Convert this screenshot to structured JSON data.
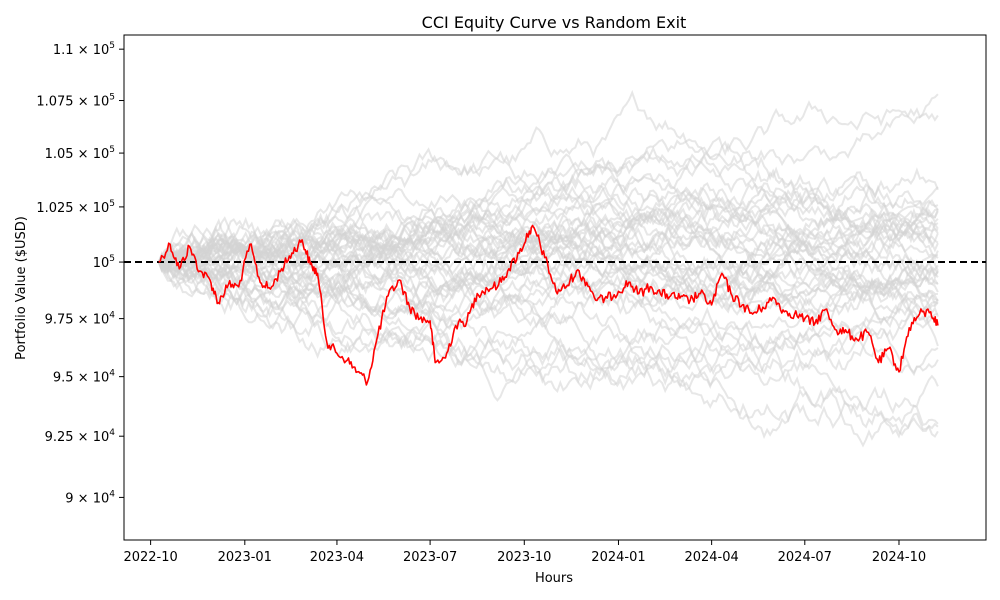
{
  "chart_data": {
    "type": "line",
    "title": "CCI Equity Curve vs Random Exit",
    "xlabel": "Hours",
    "ylabel": "Portfolio Value ($USD)",
    "yscale": "log",
    "xlim": [
      "2022-09-05",
      "2024-12-25"
    ],
    "ylim": [
      88300,
      110700
    ],
    "x_ticks": [
      "2022-10-01",
      "2023-01-01",
      "2023-04-01",
      "2023-07-01",
      "2023-10-01",
      "2024-01-01",
      "2024-04-01",
      "2024-07-01",
      "2024-10-01"
    ],
    "x_tick_labels": [
      "2022-10",
      "2023-01",
      "2023-04",
      "2023-07",
      "2023-10",
      "2024-01",
      "2024-04",
      "2024-07",
      "2024-10"
    ],
    "y_ticks": [
      {
        "value": 90000,
        "mantissa": "9",
        "exponent": "4"
      },
      {
        "value": 92500,
        "mantissa": "9.25",
        "exponent": "4"
      },
      {
        "value": 95000,
        "mantissa": "9.5",
        "exponent": "4"
      },
      {
        "value": 97500,
        "mantissa": "9.75",
        "exponent": "4"
      },
      {
        "value": 100000,
        "mantissa": "",
        "exponent": "5"
      },
      {
        "value": 102500,
        "mantissa": "1.025",
        "exponent": "5"
      },
      {
        "value": 105000,
        "mantissa": "1.05",
        "exponent": "5"
      },
      {
        "value": 107500,
        "mantissa": "1.075",
        "exponent": "5"
      },
      {
        "value": 110000,
        "mantissa": "1.1",
        "exponent": "5"
      }
    ],
    "baseline": {
      "y": 100000,
      "color": "#000000",
      "style": "dashed"
    },
    "grid": false,
    "colors": {
      "strategy": "#ff0000",
      "random": "#d3d3d3",
      "baseline": "#000000"
    },
    "series": [
      {
        "role": "strategy",
        "x": [
          "2022-10-09",
          "2022-10-20",
          "2022-10-29",
          "2022-11-08",
          "2022-11-18",
          "2022-11-28",
          "2022-12-06",
          "2022-12-16",
          "2022-12-26",
          "2023-01-06",
          "2023-01-16",
          "2023-01-26",
          "2023-02-06",
          "2023-02-16",
          "2023-02-26",
          "2023-03-06",
          "2023-03-13",
          "2023-03-22",
          "2023-04-01",
          "2023-04-11",
          "2023-04-21",
          "2023-05-01",
          "2023-05-11",
          "2023-05-21",
          "2023-06-01",
          "2023-06-11",
          "2023-06-21",
          "2023-07-01",
          "2023-07-06",
          "2023-07-16",
          "2023-07-26",
          "2023-08-06",
          "2023-08-16",
          "2023-08-26",
          "2023-09-06",
          "2023-09-16",
          "2023-09-26",
          "2023-10-06",
          "2023-10-11",
          "2023-10-21",
          "2023-11-01",
          "2023-11-11",
          "2023-11-21",
          "2023-12-01",
          "2023-12-11",
          "2023-12-21",
          "2024-01-01",
          "2024-01-11",
          "2024-01-21",
          "2024-02-01",
          "2024-02-11",
          "2024-02-21",
          "2024-03-01",
          "2024-03-11",
          "2024-03-21",
          "2024-04-01",
          "2024-04-11",
          "2024-04-21",
          "2024-05-01",
          "2024-05-11",
          "2024-05-21",
          "2024-06-01",
          "2024-06-11",
          "2024-06-21",
          "2024-07-01",
          "2024-07-11",
          "2024-07-21",
          "2024-08-01",
          "2024-08-11",
          "2024-08-21",
          "2024-09-01",
          "2024-09-11",
          "2024-09-21",
          "2024-10-01",
          "2024-10-11",
          "2024-10-21",
          "2024-11-01",
          "2024-11-08"
        ],
        "y": [
          100000,
          100800,
          99700,
          100700,
          99600,
          99200,
          98200,
          99000,
          98900,
          100800,
          99100,
          98800,
          99700,
          100400,
          101000,
          99900,
          99500,
          96500,
          96000,
          95700,
          95200,
          94800,
          96800,
          98500,
          99200,
          98000,
          97500,
          97400,
          95600,
          95800,
          97200,
          97400,
          98600,
          98800,
          99000,
          99700,
          100400,
          101400,
          101500,
          100200,
          98700,
          98900,
          99600,
          99100,
          98300,
          98400,
          98700,
          99100,
          98600,
          98900,
          98600,
          98500,
          98400,
          98300,
          98600,
          98100,
          99500,
          98500,
          98100,
          97700,
          98000,
          98400,
          97800,
          97700,
          97500,
          97300,
          97900,
          97000,
          96900,
          96600,
          96900,
          95600,
          96200,
          95200,
          97100,
          97700,
          97800,
          97200
        ]
      }
    ]
  }
}
